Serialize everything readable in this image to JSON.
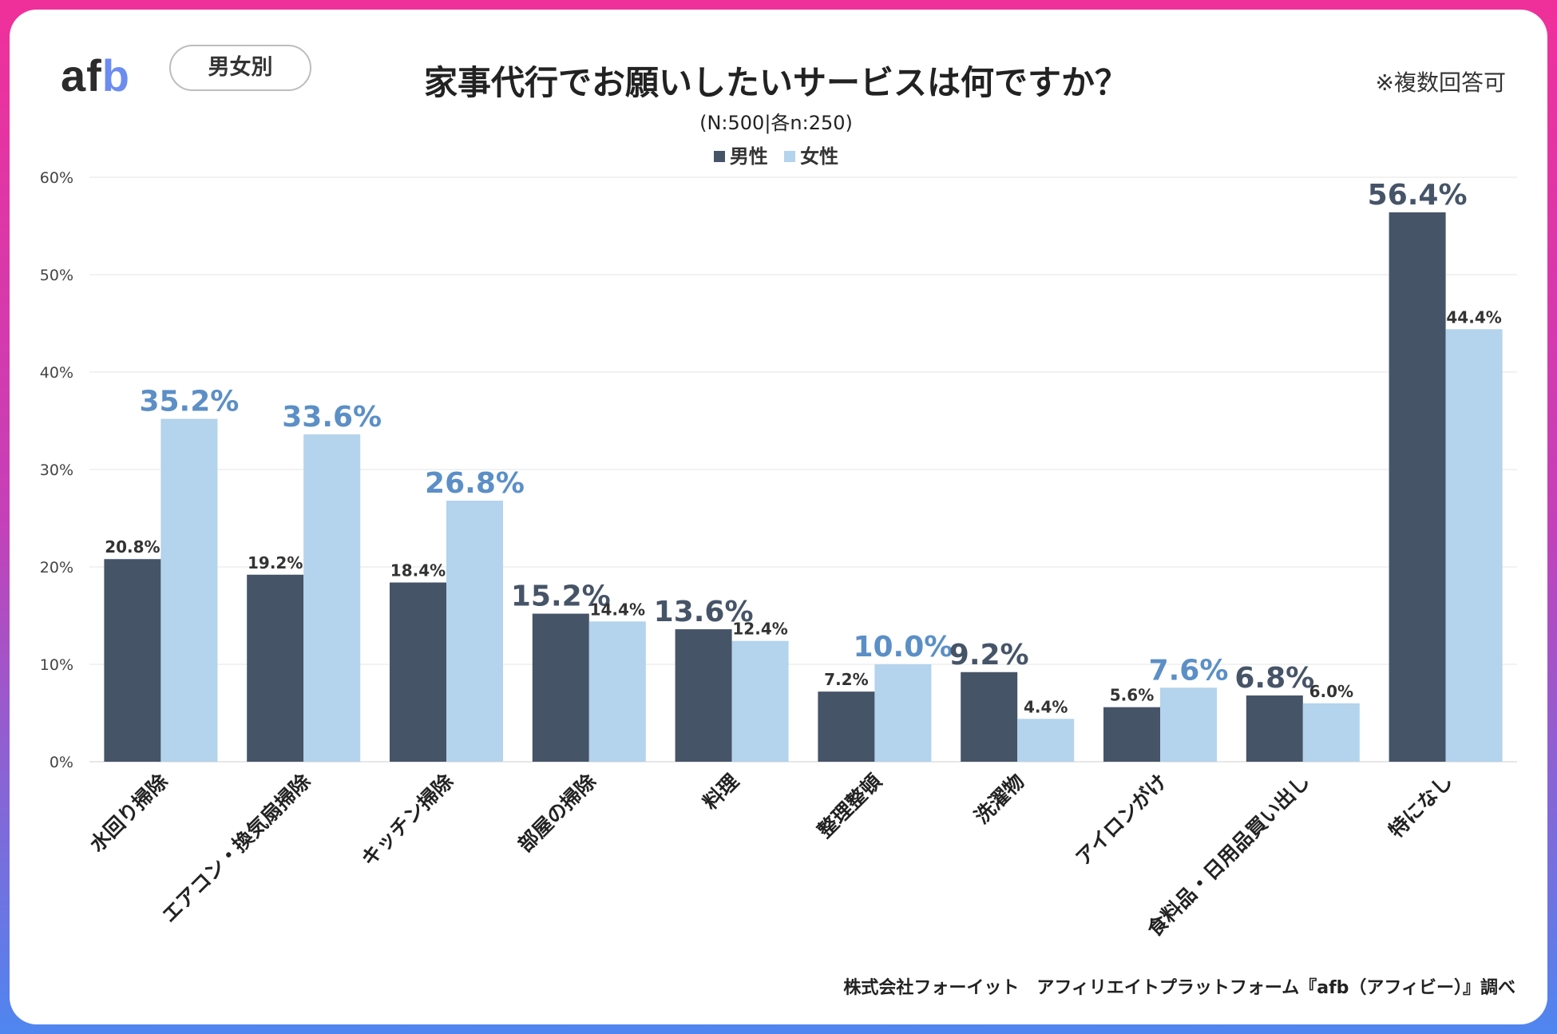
{
  "header": {
    "logo_a": "af",
    "logo_b": "b",
    "segment_label": "男女別",
    "title": "家事代行でお願いしたいサービスは何ですか？",
    "note": "※複数回答可",
    "subtitle": "(N:500|各n:250)"
  },
  "footer": {
    "credit": "株式会社フォーイット　アフィリエイトプラットフォーム『afb（アフィビー）』調べ"
  },
  "colors": {
    "male": "#465468",
    "female": "#b4d3ec",
    "female_highlight_label": "#5b8fc6",
    "grid": "#e6e6e6"
  },
  "chart_data": {
    "type": "bar",
    "title": "家事代行でお願いしたいサービスは何ですか？",
    "xlabel": "",
    "ylabel": "",
    "ylim": [
      0,
      60
    ],
    "yticks": [
      "0%",
      "10%",
      "20%",
      "30%",
      "40%",
      "50%",
      "60%"
    ],
    "categories": [
      "水回り掃除",
      "エアコン・換気扇掃除",
      "キッチン掃除",
      "部屋の掃除",
      "料理",
      "整理整頓",
      "洗濯物",
      "アイロンがけ",
      "食料品・日用品買い出し",
      "特になし"
    ],
    "series": [
      {
        "name": "男性",
        "values": [
          20.8,
          19.2,
          18.4,
          15.2,
          13.6,
          7.2,
          9.2,
          5.6,
          6.8,
          56.4
        ],
        "labels": [
          "20.8%",
          "19.2%",
          "18.4%",
          "15.2%",
          "13.6%",
          "7.2%",
          "9.2%",
          "5.6%",
          "6.8%",
          "56.4%"
        ],
        "emphasized": [
          false,
          false,
          false,
          true,
          true,
          false,
          true,
          false,
          true,
          true
        ]
      },
      {
        "name": "女性",
        "values": [
          35.2,
          33.6,
          26.8,
          14.4,
          12.4,
          10.0,
          4.4,
          7.6,
          6.0,
          44.4
        ],
        "labels": [
          "35.2%",
          "33.6%",
          "26.8%",
          "14.4%",
          "12.4%",
          "10.0%",
          "4.4%",
          "7.6%",
          "6.0%",
          "44.4%"
        ],
        "emphasized": [
          true,
          true,
          true,
          false,
          false,
          true,
          false,
          true,
          false,
          false
        ]
      }
    ],
    "legend": [
      "男性",
      "女性"
    ],
    "legend_position": "top-center",
    "grid": true
  }
}
